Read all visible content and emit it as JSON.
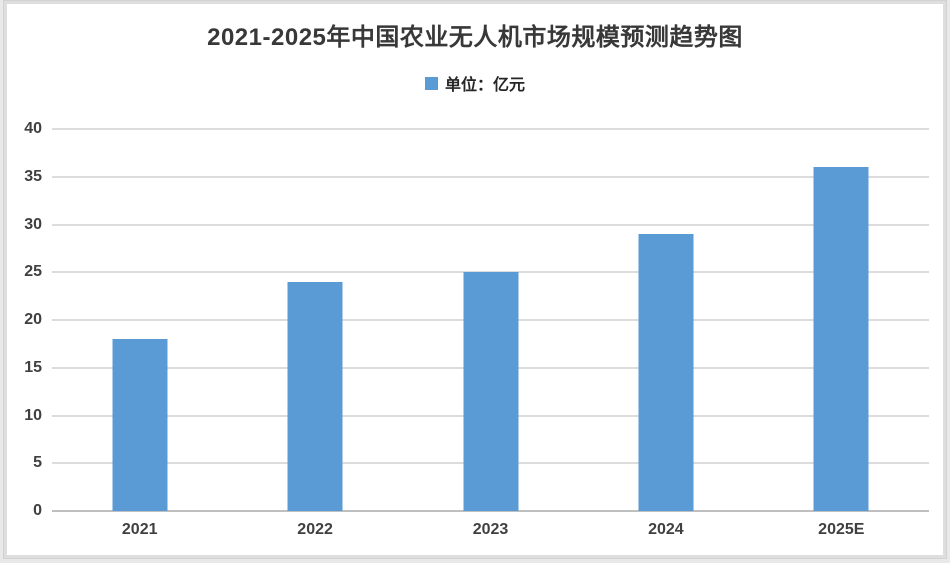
{
  "chart_data": {
    "type": "bar",
    "title": "2021-2025年中国农业无人机市场规模预测趋势图",
    "legend": {
      "label": "单位：亿元",
      "marker": "legend-square-icon",
      "position": "top-center"
    },
    "categories": [
      "2021",
      "2022",
      "2023",
      "2024",
      "2025E"
    ],
    "values": [
      18,
      24,
      25,
      29,
      36
    ],
    "yticks": [
      0,
      5,
      10,
      15,
      20,
      25,
      30,
      35,
      40
    ],
    "ylim": [
      0,
      40
    ],
    "xlabel": "",
    "ylabel": "",
    "grid": true,
    "colors": {
      "bar": "#5b9bd5",
      "gridline": "#dcdcdc",
      "axis_line": "#bfbfbf",
      "tick_label": "#404040",
      "title": "#383838",
      "background": "#ffffff",
      "frame_border": "#dedede"
    }
  }
}
